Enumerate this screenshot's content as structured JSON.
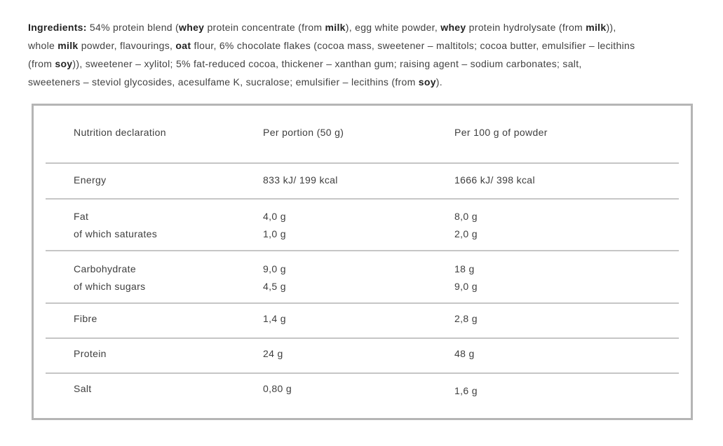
{
  "ingredients": {
    "segments": [
      {
        "t": "Ingredients:",
        "b": true
      },
      {
        "t": " 54% protein blend (",
        "b": false
      },
      {
        "t": "whey",
        "b": true
      },
      {
        "t": " protein concentrate (from ",
        "b": false
      },
      {
        "t": "milk",
        "b": true
      },
      {
        "t": "), egg white powder, ",
        "b": false
      },
      {
        "t": "whey",
        "b": true
      },
      {
        "t": " protein hydrolysate (from ",
        "b": false
      },
      {
        "t": "milk",
        "b": true
      },
      {
        "t": ")),",
        "b": false
      },
      {
        "br": true
      },
      {
        "t": "whole ",
        "b": false
      },
      {
        "t": "milk",
        "b": true
      },
      {
        "t": " powder, flavourings, ",
        "b": false
      },
      {
        "t": "oat",
        "b": true
      },
      {
        "t": " flour, 6% chocolate flakes (cocoa mass, sweetener – maltitols; cocoa butter, emulsifier – lecithins",
        "b": false
      },
      {
        "br": true
      },
      {
        "t": "(from ",
        "b": false
      },
      {
        "t": "soy",
        "b": true
      },
      {
        "t": ")), sweetener – xylitol; 5% fat-reduced cocoa, thickener – xanthan gum; raising agent – sodium carbonates; salt,",
        "b": false
      },
      {
        "br": true
      },
      {
        "t": "sweeteners – steviol glycosides, acesulfame K, sucralose; emulsifier – lecithins (from ",
        "b": false
      },
      {
        "t": "soy",
        "b": true
      },
      {
        "t": ").",
        "b": false
      }
    ]
  },
  "table": {
    "header": {
      "col1": "Nutrition declaration",
      "col2": "Per portion (50 g)",
      "col3": "Per 100 g of powder"
    },
    "rows": [
      {
        "label": "Energy",
        "portion": "833 kJ/ 199 kcal",
        "per100": "1666 kJ/ 398 kcal"
      },
      {
        "label": "Fat",
        "portion": "4,0 g",
        "per100": "8,0 g",
        "sub_label": "of which saturates",
        "sub_portion": "1,0 g",
        "sub_per100": "2,0 g"
      },
      {
        "label": "Carbohydrate",
        "portion": "9,0 g",
        "per100": "18 g",
        "sub_label": "of which sugars",
        "sub_portion": "4,5 g",
        "sub_per100": "9,0 g"
      },
      {
        "label": "Fibre",
        "portion": "1,4 g",
        "per100": "2,8 g"
      },
      {
        "label": "Protein",
        "portion": "24 g",
        "per100": "48 g"
      },
      {
        "label": "Salt",
        "portion": "0,80 g",
        "per100": "1,6 g"
      }
    ]
  },
  "colors": {
    "text_regular": "#414141",
    "text_bold": "#232323",
    "box_border": "#b5b5b5",
    "row_separator": "#c6c6c6",
    "background": "#ffffff"
  }
}
